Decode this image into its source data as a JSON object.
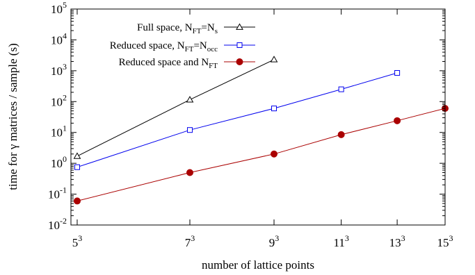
{
  "chart_data": {
    "type": "line",
    "xlabel": "number of lattice points",
    "ylabel": "time for γ matrices / sample (s)",
    "x_scale": "log",
    "y_scale": "log",
    "xlim": [
      118.2,
      3375
    ],
    "ylim": [
      0.01,
      100000
    ],
    "x_ticks": [
      {
        "value": 125,
        "base": "5",
        "exp": "3"
      },
      {
        "value": 343,
        "base": "7",
        "exp": "3"
      },
      {
        "value": 729,
        "base": "9",
        "exp": "3"
      },
      {
        "value": 1331,
        "base": "11",
        "exp": "3"
      },
      {
        "value": 2197,
        "base": "13",
        "exp": "3"
      },
      {
        "value": 3375,
        "base": "15",
        "exp": "3"
      }
    ],
    "y_ticks": [
      {
        "value": 0.01,
        "base": "10",
        "exp": "-2"
      },
      {
        "value": 0.1,
        "base": "10",
        "exp": "-1"
      },
      {
        "value": 1,
        "base": "10",
        "exp": "0"
      },
      {
        "value": 10,
        "base": "10",
        "exp": "1"
      },
      {
        "value": 100,
        "base": "10",
        "exp": "2"
      },
      {
        "value": 1000,
        "base": "10",
        "exp": "3"
      },
      {
        "value": 10000,
        "base": "10",
        "exp": "4"
      },
      {
        "value": 100000,
        "base": "10",
        "exp": "5"
      }
    ],
    "grid": false,
    "legend_position": "top-left",
    "series": [
      {
        "key": "full",
        "label": "Full space, N",
        "label_parts": [
          [
            "Full space, N",
            ""
          ],
          [
            "FT",
            "sub"
          ],
          [
            "=N",
            ""
          ],
          [
            "s",
            "sub"
          ]
        ],
        "color": "#000000",
        "marker": "open-triangle",
        "x": [
          125,
          343,
          729
        ],
        "y": [
          1.7,
          115,
          2300
        ]
      },
      {
        "key": "reduced",
        "label_parts": [
          [
            "Reduced space, N",
            ""
          ],
          [
            "FT",
            "sub"
          ],
          [
            "=N",
            ""
          ],
          [
            "occ",
            "sub"
          ]
        ],
        "color": "#0000ee",
        "marker": "open-square",
        "x": [
          125,
          343,
          729,
          1331,
          2197
        ],
        "y": [
          0.75,
          12,
          60,
          250,
          850
        ]
      },
      {
        "key": "reduced_nft",
        "label_parts": [
          [
            "Reduced space and N",
            ""
          ],
          [
            "FT",
            "sub"
          ]
        ],
        "color": "#aa0000",
        "marker": "filled-circle",
        "x": [
          125,
          343,
          729,
          1331,
          2197,
          3375
        ],
        "y": [
          0.06,
          0.5,
          2,
          8.5,
          24,
          60
        ]
      }
    ]
  }
}
